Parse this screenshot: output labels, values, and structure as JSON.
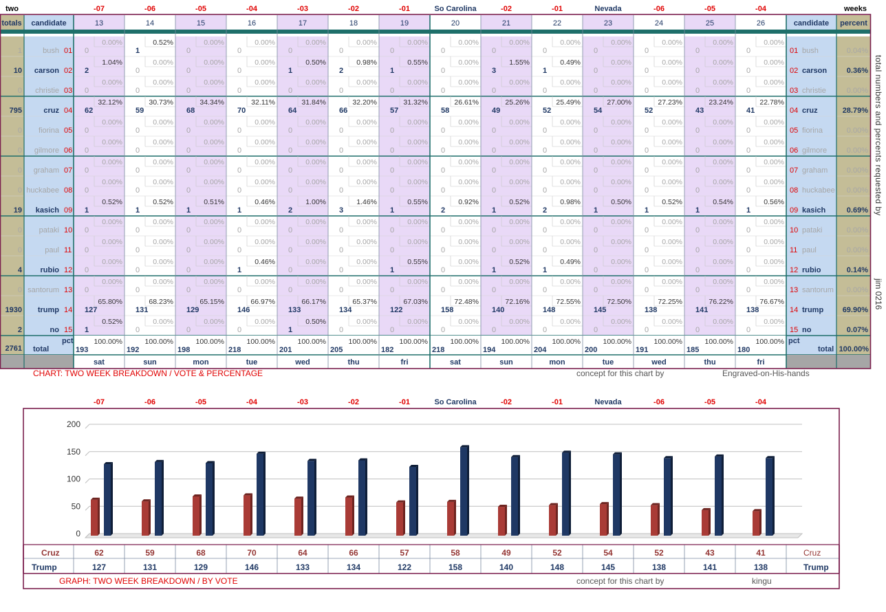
{
  "table": {
    "corner_left": "two",
    "corner_right": "weeks",
    "header": {
      "totals": "totals",
      "candidate": "candidate",
      "candidate_right": "candidate",
      "percent": "percent"
    },
    "top_labels": [
      "-07",
      "-06",
      "-05",
      "-04",
      "-03",
      "-02",
      "-01",
      "So Carolina",
      "-02",
      "-01",
      "Nevada",
      "-06",
      "-05",
      "-04"
    ],
    "columns": [
      "13",
      "14",
      "15",
      "16",
      "17",
      "18",
      "19",
      "20",
      "21",
      "22",
      "23",
      "24",
      "25",
      "26"
    ],
    "days": [
      "sat",
      "sun",
      "mon",
      "tue",
      "wed",
      "thu",
      "fri",
      "sat",
      "sun",
      "mon",
      "tue",
      "wed",
      "thu",
      "fri"
    ],
    "candidates": [
      {
        "name": "bush",
        "num": "01",
        "total": "1",
        "percent": "0.04%",
        "active": false,
        "votes": [
          "0",
          "1",
          "0",
          "0",
          "0",
          "0",
          "0",
          "0",
          "0",
          "0",
          "0",
          "0",
          "0",
          "0"
        ],
        "pcts": [
          "0.00%",
          "0.52%",
          "0.00%",
          "0.00%",
          "0.00%",
          "0.00%",
          "0.00%",
          "0.00%",
          "0.00%",
          "0.00%",
          "0.00%",
          "0.00%",
          "0.00%",
          "0.00%"
        ]
      },
      {
        "name": "carson",
        "num": "02",
        "total": "10",
        "percent": "0.36%",
        "active": true,
        "votes": [
          "2",
          "0",
          "0",
          "0",
          "1",
          "2",
          "1",
          "0",
          "3",
          "1",
          "0",
          "0",
          "0",
          "0"
        ],
        "pcts": [
          "1.04%",
          "0.00%",
          "0.00%",
          "0.00%",
          "0.50%",
          "0.98%",
          "0.55%",
          "0.00%",
          "1.55%",
          "0.49%",
          "0.00%",
          "0.00%",
          "0.00%",
          "0.00%"
        ]
      },
      {
        "name": "christie",
        "num": "03",
        "total": "0",
        "percent": "0.00%",
        "active": false,
        "votes": [
          "0",
          "0",
          "0",
          "0",
          "0",
          "0",
          "0",
          "0",
          "0",
          "0",
          "0",
          "0",
          "0",
          "0"
        ],
        "pcts": [
          "0.00%",
          "0.00%",
          "0.00%",
          "0.00%",
          "0.00%",
          "0.00%",
          "0.00%",
          "0.00%",
          "0.00%",
          "0.00%",
          "0.00%",
          "0.00%",
          "0.00%",
          "0.00%"
        ]
      },
      {
        "name": "cruz",
        "num": "04",
        "total": "795",
        "percent": "28.79%",
        "active": true,
        "votes": [
          "62",
          "59",
          "68",
          "70",
          "64",
          "66",
          "57",
          "58",
          "49",
          "52",
          "54",
          "52",
          "43",
          "41"
        ],
        "pcts": [
          "32.12%",
          "30.73%",
          "34.34%",
          "32.11%",
          "31.84%",
          "32.20%",
          "31.32%",
          "26.61%",
          "25.26%",
          "25.49%",
          "27.00%",
          "27.23%",
          "23.24%",
          "22.78%"
        ]
      },
      {
        "name": "fiorina",
        "num": "05",
        "total": "0",
        "percent": "0.00%",
        "active": false,
        "votes": [
          "0",
          "0",
          "0",
          "0",
          "0",
          "0",
          "0",
          "0",
          "0",
          "0",
          "0",
          "0",
          "0",
          "0"
        ],
        "pcts": [
          "0.00%",
          "0.00%",
          "0.00%",
          "0.00%",
          "0.00%",
          "0.00%",
          "0.00%",
          "0.00%",
          "0.00%",
          "0.00%",
          "0.00%",
          "0.00%",
          "0.00%",
          "0.00%"
        ]
      },
      {
        "name": "gilmore",
        "num": "06",
        "total": "0",
        "percent": "0.00%",
        "active": false,
        "votes": [
          "0",
          "0",
          "0",
          "0",
          "0",
          "0",
          "0",
          "0",
          "0",
          "0",
          "0",
          "0",
          "0",
          "0"
        ],
        "pcts": [
          "0.00%",
          "0.00%",
          "0.00%",
          "0.00%",
          "0.00%",
          "0.00%",
          "0.00%",
          "0.00%",
          "0.00%",
          "0.00%",
          "0.00%",
          "0.00%",
          "0.00%",
          "0.00%"
        ]
      },
      {
        "name": "graham",
        "num": "07",
        "total": "0",
        "percent": "0.00%",
        "active": false,
        "votes": [
          "0",
          "0",
          "0",
          "0",
          "0",
          "0",
          "0",
          "0",
          "0",
          "0",
          "0",
          "0",
          "0",
          "0"
        ],
        "pcts": [
          "0.00%",
          "0.00%",
          "0.00%",
          "0.00%",
          "0.00%",
          "0.00%",
          "0.00%",
          "0.00%",
          "0.00%",
          "0.00%",
          "0.00%",
          "0.00%",
          "0.00%",
          "0.00%"
        ]
      },
      {
        "name": "huckabee",
        "num": "08",
        "total": "0",
        "percent": "0.00%",
        "active": false,
        "votes": [
          "0",
          "0",
          "0",
          "0",
          "0",
          "0",
          "0",
          "0",
          "0",
          "0",
          "0",
          "0",
          "0",
          "0"
        ],
        "pcts": [
          "0.00%",
          "0.00%",
          "0.00%",
          "0.00%",
          "0.00%",
          "0.00%",
          "0.00%",
          "0.00%",
          "0.00%",
          "0.00%",
          "0.00%",
          "0.00%",
          "0.00%",
          "0.00%"
        ]
      },
      {
        "name": "kasich",
        "num": "09",
        "total": "19",
        "percent": "0.69%",
        "active": true,
        "votes": [
          "1",
          "1",
          "1",
          "1",
          "2",
          "3",
          "1",
          "2",
          "1",
          "2",
          "1",
          "1",
          "1",
          "1"
        ],
        "pcts": [
          "0.52%",
          "0.52%",
          "0.51%",
          "0.46%",
          "1.00%",
          "1.46%",
          "0.55%",
          "0.92%",
          "0.52%",
          "0.98%",
          "0.50%",
          "0.52%",
          "0.54%",
          "0.56%"
        ]
      },
      {
        "name": "pataki",
        "num": "10",
        "total": "0",
        "percent": "0.00%",
        "active": false,
        "votes": [
          "0",
          "0",
          "0",
          "0",
          "0",
          "0",
          "0",
          "0",
          "0",
          "0",
          "0",
          "0",
          "0",
          "0"
        ],
        "pcts": [
          "0.00%",
          "0.00%",
          "0.00%",
          "0.00%",
          "0.00%",
          "0.00%",
          "0.00%",
          "0.00%",
          "0.00%",
          "0.00%",
          "0.00%",
          "0.00%",
          "0.00%",
          "0.00%"
        ]
      },
      {
        "name": "paul",
        "num": "11",
        "total": "0",
        "percent": "0.00%",
        "active": false,
        "votes": [
          "0",
          "0",
          "0",
          "0",
          "0",
          "0",
          "0",
          "0",
          "0",
          "0",
          "0",
          "0",
          "0",
          "0"
        ],
        "pcts": [
          "0.00%",
          "0.00%",
          "0.00%",
          "0.00%",
          "0.00%",
          "0.00%",
          "0.00%",
          "0.00%",
          "0.00%",
          "0.00%",
          "0.00%",
          "0.00%",
          "0.00%",
          "0.00%"
        ]
      },
      {
        "name": "rubio",
        "num": "12",
        "total": "4",
        "percent": "0.14%",
        "active": true,
        "votes": [
          "0",
          "0",
          "0",
          "1",
          "0",
          "0",
          "1",
          "0",
          "1",
          "1",
          "0",
          "0",
          "0",
          "0"
        ],
        "pcts": [
          "0.00%",
          "0.00%",
          "0.00%",
          "0.46%",
          "0.00%",
          "0.00%",
          "0.55%",
          "0.00%",
          "0.52%",
          "0.49%",
          "0.00%",
          "0.00%",
          "0.00%",
          "0.00%"
        ]
      },
      {
        "name": "santorum",
        "num": "13",
        "total": "0",
        "percent": "0.00%",
        "active": false,
        "votes": [
          "0",
          "0",
          "0",
          "0",
          "0",
          "0",
          "0",
          "0",
          "0",
          "0",
          "0",
          "0",
          "0",
          "0"
        ],
        "pcts": [
          "0.00%",
          "0.00%",
          "0.00%",
          "0.00%",
          "0.00%",
          "0.00%",
          "0.00%",
          "0.00%",
          "0.00%",
          "0.00%",
          "0.00%",
          "0.00%",
          "0.00%",
          "0.00%"
        ]
      },
      {
        "name": "trump",
        "num": "14",
        "total": "1930",
        "percent": "69.90%",
        "active": true,
        "votes": [
          "127",
          "131",
          "129",
          "146",
          "133",
          "134",
          "122",
          "158",
          "140",
          "148",
          "145",
          "138",
          "141",
          "138"
        ],
        "pcts": [
          "65.80%",
          "68.23%",
          "65.15%",
          "66.97%",
          "66.17%",
          "65.37%",
          "67.03%",
          "72.48%",
          "72.16%",
          "72.55%",
          "72.50%",
          "72.25%",
          "76.22%",
          "76.67%"
        ]
      },
      {
        "name": "no",
        "num": "15",
        "total": "2",
        "percent": "0.07%",
        "active": true,
        "votes": [
          "1",
          "0",
          "0",
          "0",
          "1",
          "0",
          "0",
          "0",
          "0",
          "0",
          "0",
          "0",
          "0",
          "0"
        ],
        "pcts": [
          "0.52%",
          "0.00%",
          "0.00%",
          "0.00%",
          "0.50%",
          "0.00%",
          "0.00%",
          "0.00%",
          "0.00%",
          "0.00%",
          "0.00%",
          "0.00%",
          "0.00%",
          "0.00%"
        ]
      }
    ],
    "total_row": {
      "pct_label": "pct",
      "label": "total",
      "grand_total": "2761",
      "grand_percent": "100.00%",
      "votes": [
        "193",
        "192",
        "198",
        "218",
        "201",
        "205",
        "182",
        "218",
        "194",
        "204",
        "200",
        "191",
        "185",
        "180"
      ],
      "pcts": [
        "100.00%",
        "100.00%",
        "100.00%",
        "100.00%",
        "100.00%",
        "100.00%",
        "100.00%",
        "100.00%",
        "100.00%",
        "100.00%",
        "100.00%",
        "100.00%",
        "100.00%",
        "100.00%"
      ]
    }
  },
  "side_note": "total numbers and percents requested by",
  "side_note2": "jim 0216",
  "captions": {
    "chart_title": "CHART: TWO WEEK BREAKDOWN / VOTE & PERCENTAGE",
    "concept1": "concept for this chart by",
    "author1": "Engraved-on-His-hands",
    "graph_title": "GRAPH: TWO WEEK BREAKDOWN / BY VOTE",
    "concept2": "concept for this chart by",
    "author2": "kingu"
  },
  "colors": {
    "cruz": "#943634",
    "trump": "#1f3864",
    "lavender": "#e9d9f7",
    "blue_col": "#c5d9f1",
    "tan": "#c4bd97",
    "border": "#7b1f4e"
  },
  "chart_data": {
    "type": "bar",
    "categories": [
      "-07",
      "-06",
      "-05",
      "-04",
      "-03",
      "-02",
      "-01",
      "So Carolina",
      "-02",
      "-01",
      "Nevada",
      "-06",
      "-05",
      "-04"
    ],
    "series": [
      {
        "name": "Cruz",
        "values": [
          62,
          59,
          68,
          70,
          64,
          66,
          57,
          58,
          49,
          52,
          54,
          52,
          43,
          41
        ]
      },
      {
        "name": "Trump",
        "values": [
          127,
          131,
          129,
          146,
          133,
          134,
          122,
          158,
          140,
          148,
          145,
          138,
          141,
          138
        ]
      }
    ],
    "yticks": [
      "0",
      "50",
      "100",
      "150",
      "200"
    ],
    "ylim": [
      0,
      200
    ],
    "grid": true
  }
}
